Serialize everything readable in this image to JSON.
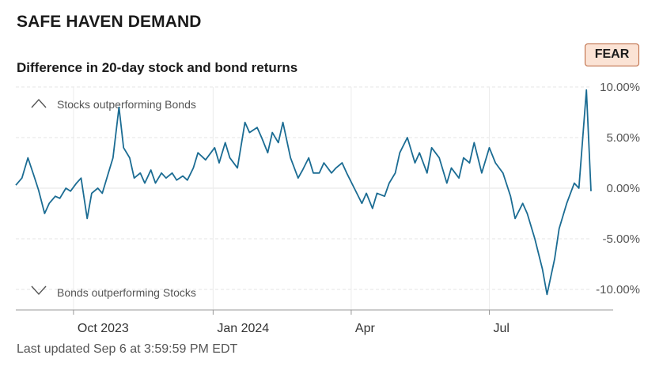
{
  "header": {
    "title": "SAFE HAVEN DEMAND",
    "subtitle": "Difference in 20-day stock and bond returns",
    "badge": "FEAR",
    "badge_color": "#fbe3d5",
    "badge_border_color": "#b9633a"
  },
  "footer": {
    "last_updated": "Last updated Sep 6 at 3:59:59 PM EDT"
  },
  "annotations": {
    "top": "Stocks outperforming Bonds",
    "bottom": "Bonds outperforming Stocks",
    "top_icon": "chevron-up-icon",
    "bottom_icon": "chevron-down-icon"
  },
  "chart_data": {
    "type": "line",
    "title": "Difference in 20-day stock and bond returns",
    "xlabel": "",
    "ylabel": "",
    "x_range": [
      "2023-08-24",
      "2024-09-06"
    ],
    "ylim": [
      -12.0,
      10.5
    ],
    "y_ticks": [
      10,
      5,
      0,
      -5,
      -10
    ],
    "y_tick_labels": [
      "10.00%",
      "5.00%",
      "0.00%",
      "-5.00%",
      "-10.00%"
    ],
    "x_ticks": [
      {
        "date": "2023-10-01",
        "label": "Oct 2023"
      },
      {
        "date": "2024-01-01",
        "label": "Jan 2024"
      },
      {
        "date": "2024-04-01",
        "label": "Apr"
      },
      {
        "date": "2024-07-01",
        "label": "Jul"
      }
    ],
    "grid": true,
    "line_color": "#1b6c93",
    "x": [
      "2023-08-24",
      "2023-08-28",
      "2023-09-01",
      "2023-09-05",
      "2023-09-08",
      "2023-09-12",
      "2023-09-15",
      "2023-09-19",
      "2023-09-22",
      "2023-09-26",
      "2023-09-29",
      "2023-10-03",
      "2023-10-06",
      "2023-10-10",
      "2023-10-13",
      "2023-10-17",
      "2023-10-20",
      "2023-10-24",
      "2023-10-27",
      "2023-10-31",
      "2023-11-03",
      "2023-11-07",
      "2023-11-10",
      "2023-11-14",
      "2023-11-17",
      "2023-11-21",
      "2023-11-24",
      "2023-11-28",
      "2023-12-01",
      "2023-12-05",
      "2023-12-08",
      "2023-12-12",
      "2023-12-15",
      "2023-12-19",
      "2023-12-22",
      "2023-12-27",
      "2024-01-02",
      "2024-01-05",
      "2024-01-09",
      "2024-01-12",
      "2024-01-17",
      "2024-01-22",
      "2024-01-25",
      "2024-01-30",
      "2024-02-02",
      "2024-02-06",
      "2024-02-09",
      "2024-02-13",
      "2024-02-16",
      "2024-02-21",
      "2024-02-26",
      "2024-02-29",
      "2024-03-04",
      "2024-03-07",
      "2024-03-11",
      "2024-03-14",
      "2024-03-19",
      "2024-03-22",
      "2024-03-26",
      "2024-03-29",
      "2024-04-03",
      "2024-04-08",
      "2024-04-11",
      "2024-04-15",
      "2024-04-18",
      "2024-04-23",
      "2024-04-26",
      "2024-04-30",
      "2024-05-03",
      "2024-05-08",
      "2024-05-13",
      "2024-05-16",
      "2024-05-21",
      "2024-05-24",
      "2024-05-29",
      "2024-06-03",
      "2024-06-06",
      "2024-06-11",
      "2024-06-14",
      "2024-06-18",
      "2024-06-21",
      "2024-06-26",
      "2024-07-01",
      "2024-07-05",
      "2024-07-10",
      "2024-07-15",
      "2024-07-18",
      "2024-07-23",
      "2024-07-26",
      "2024-07-31",
      "2024-08-05",
      "2024-08-08",
      "2024-08-13",
      "2024-08-16",
      "2024-08-21",
      "2024-08-26",
      "2024-08-29",
      "2024-09-03",
      "2024-09-06"
    ],
    "series": [
      {
        "values": [
          0.3,
          1.0,
          3.0,
          1.2,
          -0.2,
          -2.5,
          -1.5,
          -0.8,
          -1.0,
          0.0,
          -0.3,
          0.5,
          1.0,
          -3.0,
          -0.5,
          0.0,
          -0.5,
          1.5,
          3.0,
          8.0,
          4.0,
          3.0,
          1.0,
          1.5,
          0.5,
          1.8,
          0.5,
          1.5,
          1.0,
          1.5,
          0.8,
          1.2,
          0.8,
          2.0,
          3.5,
          2.8,
          4.0,
          2.5,
          4.5,
          3.0,
          2.0,
          6.5,
          5.5,
          6.0,
          5.0,
          3.5,
          5.5,
          4.5,
          6.5,
          3.0,
          1.0,
          1.8,
          3.0,
          1.5,
          1.5,
          2.5,
          1.5,
          2.0,
          2.5,
          1.5,
          0.0,
          -1.5,
          -0.5,
          -2.0,
          -0.5,
          -0.8,
          0.5,
          1.5,
          3.5,
          5.0,
          2.5,
          3.5,
          1.5,
          4.0,
          3.0,
          0.5,
          2.0,
          1.0,
          3.0,
          2.5,
          4.5,
          1.5,
          4.0,
          2.5,
          1.5,
          -0.8,
          -3.0,
          -1.5,
          -2.5,
          -5.0,
          -8.0,
          -10.5,
          -7.0,
          -4.0,
          -1.5,
          0.5,
          0.0,
          9.7,
          -0.3
        ]
      }
    ]
  }
}
